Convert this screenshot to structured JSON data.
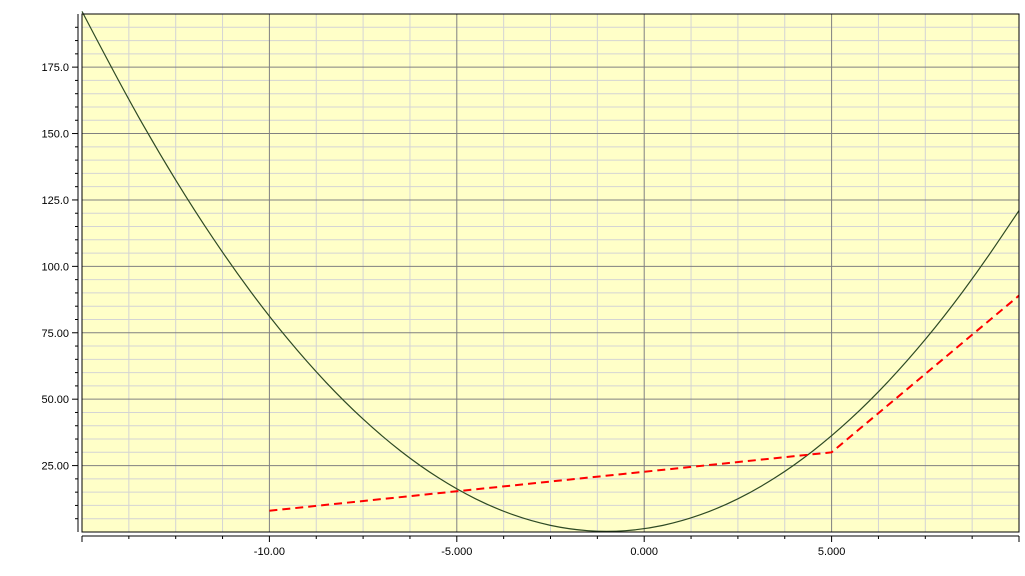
{
  "chart_data": {
    "type": "line",
    "title": "",
    "xlabel": "",
    "ylabel": "",
    "xlim": [
      -15,
      10
    ],
    "ylim": [
      0,
      195
    ],
    "grid": true,
    "legend": "none",
    "colors": {
      "plot_background": "#ffffc8",
      "major_grid": "#808080",
      "minor_grid": "#d4d4d4",
      "axis": "#000000",
      "curve": "#2e4a24",
      "dashed": "#ff0000"
    },
    "x_ticks": [
      {
        "value": -10,
        "label": "-10.00"
      },
      {
        "value": -5,
        "label": "-5.000"
      },
      {
        "value": 0,
        "label": "0.000"
      },
      {
        "value": 5,
        "label": "5.000"
      }
    ],
    "y_ticks": [
      {
        "value": 25,
        "label": "25.00"
      },
      {
        "value": 50,
        "label": "50.00"
      },
      {
        "value": 75,
        "label": "75.00"
      },
      {
        "value": 100,
        "label": "100.0"
      },
      {
        "value": 125,
        "label": "125.0"
      },
      {
        "value": 150,
        "label": "150.0"
      },
      {
        "value": 175,
        "label": "175.0"
      }
    ],
    "series": [
      {
        "style": "solid",
        "x": [
          -15,
          -14,
          -13,
          -12,
          -11,
          -10,
          -9,
          -8,
          -7,
          -6,
          -5,
          -4,
          -3,
          -2,
          -1,
          0,
          1,
          2,
          3,
          4,
          5,
          6,
          7,
          8,
          9,
          10
        ],
        "values": [
          196,
          169,
          144,
          121,
          100,
          81,
          64,
          49,
          36,
          25,
          16,
          9,
          4,
          1,
          0,
          1,
          4,
          9,
          16,
          25,
          36,
          49,
          64,
          81,
          100,
          121
        ]
      },
      {
        "style": "dashed",
        "x": [
          -10,
          5,
          10
        ],
        "values": [
          8,
          30,
          89
        ]
      }
    ]
  }
}
